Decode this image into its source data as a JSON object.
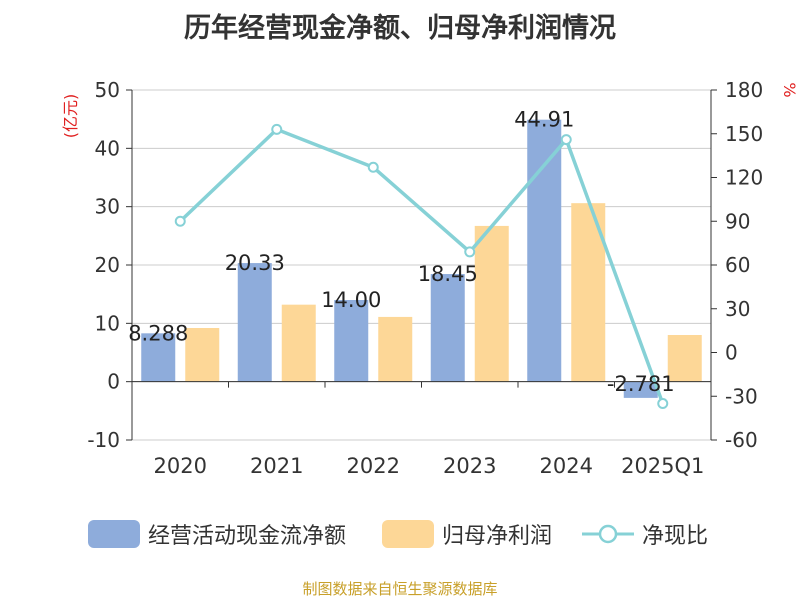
{
  "title": "历年经营现金净额、归母净利润情况",
  "source_note": "制图数据来自恒生聚源数据库",
  "chart_data": {
    "type": "bar",
    "categories": [
      "2020",
      "2021",
      "2022",
      "2023",
      "2024",
      "2025Q1"
    ],
    "series": [
      {
        "name": "经营活动现金流净额",
        "axis": "left",
        "values": [
          8.288,
          20.33,
          14.0,
          18.45,
          44.91,
          -2.781
        ],
        "labels": [
          "8.288",
          "20.33",
          "14.00",
          "18.45",
          "44.91",
          "-2.781"
        ]
      },
      {
        "name": "归母净利润",
        "axis": "left",
        "values": [
          9.2,
          13.2,
          11.1,
          26.7,
          30.6,
          8.0
        ]
      },
      {
        "name": "净现比",
        "axis": "right",
        "type": "line",
        "values": [
          90,
          153,
          127,
          69,
          146,
          -35
        ]
      }
    ],
    "ylabel_left": "(亿元)",
    "ylabel_right": "%",
    "ylim_left": [
      -10,
      50
    ],
    "ylim_right": [
      -60,
      180
    ],
    "yticks_left": [
      -10,
      0,
      10,
      20,
      30,
      40,
      50
    ],
    "yticks_right": [
      -60,
      -30,
      0,
      30,
      60,
      90,
      120,
      150,
      180
    ],
    "grid": true,
    "legend_position": "bottom"
  },
  "colors": {
    "cash_flow": "#8eacdb",
    "net_profit": "#fdd797",
    "ratio_line": "#86d1d6",
    "axis_unit": "#e02020",
    "source": "#c8a02a"
  },
  "legend": [
    {
      "label": "经营活动现金流净额",
      "swatch": "bar",
      "color": "#8eacdb"
    },
    {
      "label": "归母净利润",
      "swatch": "bar",
      "color": "#fdd797"
    },
    {
      "label": "净现比",
      "swatch": "line",
      "color": "#86d1d6"
    }
  ]
}
